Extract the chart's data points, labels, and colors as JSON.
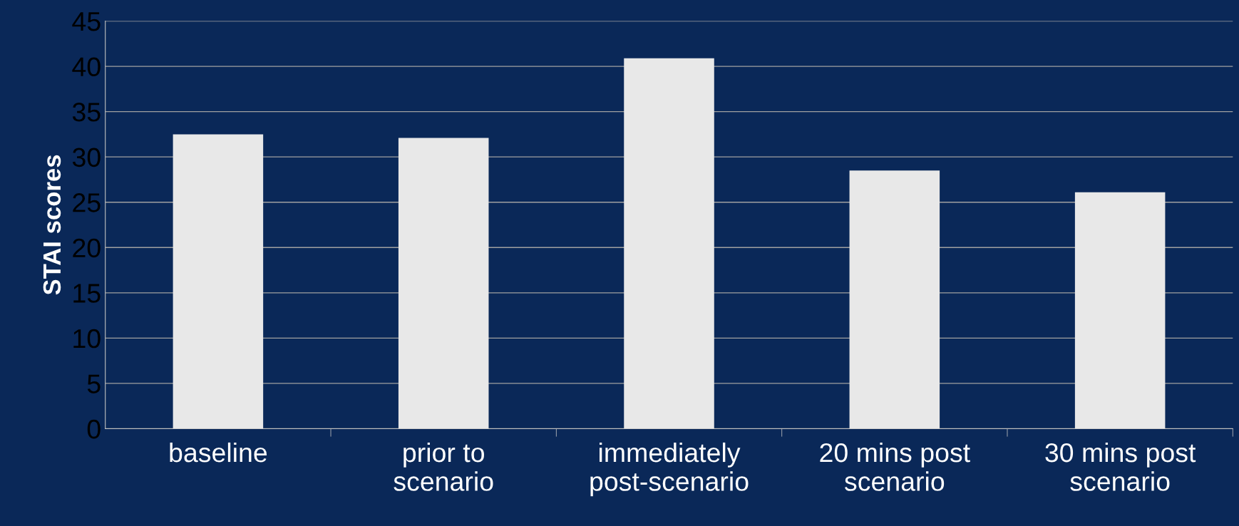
{
  "chart_data": {
    "type": "bar",
    "ylabel": "STAI scores",
    "categories": [
      "baseline",
      "prior to\nscenario",
      "immediately\npost-scenario",
      "20 mins post\nscenario",
      "30 mins post\nscenario"
    ],
    "values": [
      32.5,
      32.1,
      40.9,
      28.5,
      26.1
    ],
    "color": "#e8e8e8",
    "ylim": [
      0,
      45
    ],
    "yticks": [
      0,
      5,
      10,
      15,
      20,
      25,
      30,
      35,
      40,
      45
    ],
    "grid": "y",
    "legend": false
  }
}
